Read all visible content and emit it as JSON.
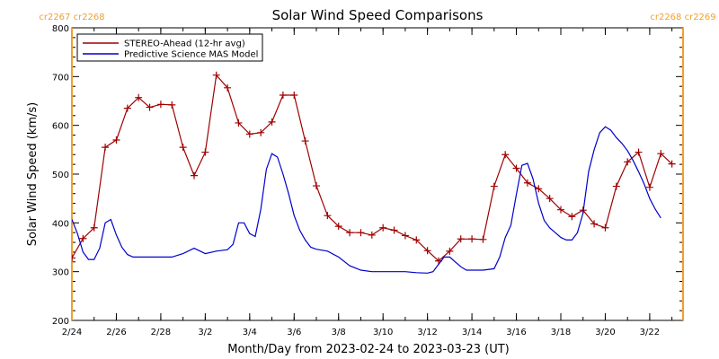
{
  "chart_data": {
    "type": "line",
    "title": "Solar Wind Speed Comparisons",
    "xlabel": "Month/Day from 2023-02-24 to 2023-03-23 (UT)",
    "ylabel": "Solar Wind Speed (km/s)",
    "x_range": [
      "2023-02-24T00:00",
      "2023-03-23T12:00"
    ],
    "ylim": [
      200,
      800
    ],
    "y_ticks": [
      200,
      300,
      400,
      500,
      600,
      700,
      800
    ],
    "x_ticks": [
      {
        "date": "2023-02-24",
        "label": "2/24"
      },
      {
        "date": "2023-02-26",
        "label": "2/26"
      },
      {
        "date": "2023-02-28",
        "label": "2/28"
      },
      {
        "date": "2023-03-02",
        "label": "3/2"
      },
      {
        "date": "2023-03-04",
        "label": "3/4"
      },
      {
        "date": "2023-03-06",
        "label": "3/6"
      },
      {
        "date": "2023-03-08",
        "label": "3/8"
      },
      {
        "date": "2023-03-10",
        "label": "3/10"
      },
      {
        "date": "2023-03-12",
        "label": "3/12"
      },
      {
        "date": "2023-03-14",
        "label": "3/14"
      },
      {
        "date": "2023-03-16",
        "label": "3/16"
      },
      {
        "date": "2023-03-18",
        "label": "3/18"
      },
      {
        "date": "2023-03-20",
        "label": "3/20"
      },
      {
        "date": "2023-03-22",
        "label": "3/22"
      }
    ],
    "carrington_rotations": [
      {
        "date": "2023-02-24T00:00",
        "labels": [
          "cr2267",
          "cr2268"
        ],
        "side": "left"
      },
      {
        "date": "2023-03-23T12:00",
        "labels": [
          "cr2268",
          "cr2269"
        ],
        "side": "right"
      }
    ],
    "legend_position": "top-left",
    "series": [
      {
        "name": "STEREO-Ahead (12-hr avg)",
        "color": "#a00000",
        "marker": "plus",
        "points": [
          [
            "2023-02-24T00:00",
            328
          ],
          [
            "2023-02-24T12:00",
            368
          ],
          [
            "2023-02-25T00:00",
            390
          ],
          [
            "2023-02-25T12:00",
            555
          ],
          [
            "2023-02-26T00:00",
            570
          ],
          [
            "2023-02-26T12:00",
            635
          ],
          [
            "2023-02-27T00:00",
            657
          ],
          [
            "2023-02-27T12:00",
            637
          ],
          [
            "2023-02-28T00:00",
            643
          ],
          [
            "2023-02-28T12:00",
            642
          ],
          [
            "2023-03-01T00:00",
            555
          ],
          [
            "2023-03-01T12:00",
            497
          ],
          [
            "2023-03-02T00:00",
            545
          ],
          [
            "2023-03-02T12:00",
            703
          ],
          [
            "2023-03-03T00:00",
            677
          ],
          [
            "2023-03-03T12:00",
            605
          ],
          [
            "2023-03-04T00:00",
            582
          ],
          [
            "2023-03-04T12:00",
            585
          ],
          [
            "2023-03-05T00:00",
            607
          ],
          [
            "2023-03-05T12:00",
            662
          ],
          [
            "2023-03-06T00:00",
            662
          ],
          [
            "2023-03-06T12:00",
            568
          ],
          [
            "2023-03-07T00:00",
            476
          ],
          [
            "2023-03-07T12:00",
            415
          ],
          [
            "2023-03-08T00:00",
            393
          ],
          [
            "2023-03-08T12:00",
            380
          ],
          [
            "2023-03-09T00:00",
            380
          ],
          [
            "2023-03-09T12:00",
            375
          ],
          [
            "2023-03-10T00:00",
            390
          ],
          [
            "2023-03-10T12:00",
            385
          ],
          [
            "2023-03-11T00:00",
            374
          ],
          [
            "2023-03-11T12:00",
            365
          ],
          [
            "2023-03-12T00:00",
            343
          ],
          [
            "2023-03-12T12:00",
            322
          ],
          [
            "2023-03-13T00:00",
            342
          ],
          [
            "2023-03-13T12:00",
            367
          ],
          [
            "2023-03-14T00:00",
            367
          ],
          [
            "2023-03-14T12:00",
            366
          ],
          [
            "2023-03-15T00:00",
            475
          ],
          [
            "2023-03-15T12:00",
            540
          ],
          [
            "2023-03-16T00:00",
            512
          ],
          [
            "2023-03-16T12:00",
            482
          ],
          [
            "2023-03-17T00:00",
            470
          ],
          [
            "2023-03-17T12:00",
            450
          ],
          [
            "2023-03-18T00:00",
            427
          ],
          [
            "2023-03-18T12:00",
            413
          ],
          [
            "2023-03-19T00:00",
            426
          ],
          [
            "2023-03-19T12:00",
            398
          ],
          [
            "2023-03-20T00:00",
            390
          ],
          [
            "2023-03-20T12:00",
            475
          ],
          [
            "2023-03-21T00:00",
            525
          ],
          [
            "2023-03-21T12:00",
            545
          ],
          [
            "2023-03-22T00:00",
            473
          ],
          [
            "2023-03-22T12:00",
            542
          ],
          [
            "2023-03-23T00:00",
            521
          ]
        ]
      },
      {
        "name": "Predictive Science MAS Model",
        "color": "#0000cc",
        "marker": "none",
        "points": [
          [
            "2023-02-24T00:00",
            407
          ],
          [
            "2023-02-24T06:00",
            378
          ],
          [
            "2023-02-24T12:00",
            340
          ],
          [
            "2023-02-24T18:00",
            325
          ],
          [
            "2023-02-25T00:00",
            325
          ],
          [
            "2023-02-25T06:00",
            348
          ],
          [
            "2023-02-25T12:00",
            400
          ],
          [
            "2023-02-25T18:00",
            407
          ],
          [
            "2023-02-26T00:00",
            375
          ],
          [
            "2023-02-26T06:00",
            350
          ],
          [
            "2023-02-26T12:00",
            335
          ],
          [
            "2023-02-26T18:00",
            330
          ],
          [
            "2023-02-27T00:00",
            330
          ],
          [
            "2023-02-27T12:00",
            330
          ],
          [
            "2023-02-28T00:00",
            330
          ],
          [
            "2023-02-28T12:00",
            330
          ],
          [
            "2023-03-01T00:00",
            337
          ],
          [
            "2023-03-01T12:00",
            348
          ],
          [
            "2023-03-02T00:00",
            337
          ],
          [
            "2023-03-02T12:00",
            342
          ],
          [
            "2023-03-03T00:00",
            345
          ],
          [
            "2023-03-03T06:00",
            356
          ],
          [
            "2023-03-03T12:00",
            400
          ],
          [
            "2023-03-03T18:00",
            400
          ],
          [
            "2023-03-04T00:00",
            378
          ],
          [
            "2023-03-04T06:00",
            372
          ],
          [
            "2023-03-04T12:00",
            428
          ],
          [
            "2023-03-04T18:00",
            510
          ],
          [
            "2023-03-05T00:00",
            542
          ],
          [
            "2023-03-05T06:00",
            535
          ],
          [
            "2023-03-05T12:00",
            500
          ],
          [
            "2023-03-05T18:00",
            460
          ],
          [
            "2023-03-06T00:00",
            415
          ],
          [
            "2023-03-06T06:00",
            385
          ],
          [
            "2023-03-06T12:00",
            365
          ],
          [
            "2023-03-06T18:00",
            350
          ],
          [
            "2023-03-07T00:00",
            346
          ],
          [
            "2023-03-07T12:00",
            342
          ],
          [
            "2023-03-08T00:00",
            330
          ],
          [
            "2023-03-08T12:00",
            312
          ],
          [
            "2023-03-09T00:00",
            303
          ],
          [
            "2023-03-09T12:00",
            300
          ],
          [
            "2023-03-10T00:00",
            300
          ],
          [
            "2023-03-11T00:00",
            300
          ],
          [
            "2023-03-11T12:00",
            298
          ],
          [
            "2023-03-12T00:00",
            297
          ],
          [
            "2023-03-12T06:00",
            300
          ],
          [
            "2023-03-12T12:00",
            315
          ],
          [
            "2023-03-12T18:00",
            330
          ],
          [
            "2023-03-13T00:00",
            330
          ],
          [
            "2023-03-13T06:00",
            320
          ],
          [
            "2023-03-13T12:00",
            310
          ],
          [
            "2023-03-13T18:00",
            303
          ],
          [
            "2023-03-14T00:00",
            303
          ],
          [
            "2023-03-14T12:00",
            303
          ],
          [
            "2023-03-15T00:00",
            306
          ],
          [
            "2023-03-15T06:00",
            330
          ],
          [
            "2023-03-15T12:00",
            370
          ],
          [
            "2023-03-15T18:00",
            395
          ],
          [
            "2023-03-16T00:00",
            458
          ],
          [
            "2023-03-16T06:00",
            518
          ],
          [
            "2023-03-16T12:00",
            522
          ],
          [
            "2023-03-16T18:00",
            490
          ],
          [
            "2023-03-17T00:00",
            440
          ],
          [
            "2023-03-17T06:00",
            405
          ],
          [
            "2023-03-17T12:00",
            390
          ],
          [
            "2023-03-17T18:00",
            380
          ],
          [
            "2023-03-18T00:00",
            370
          ],
          [
            "2023-03-18T06:00",
            365
          ],
          [
            "2023-03-18T12:00",
            365
          ],
          [
            "2023-03-18T18:00",
            380
          ],
          [
            "2023-03-19T00:00",
            420
          ],
          [
            "2023-03-19T06:00",
            505
          ],
          [
            "2023-03-19T12:00",
            550
          ],
          [
            "2023-03-19T18:00",
            585
          ],
          [
            "2023-03-20T00:00",
            597
          ],
          [
            "2023-03-20T06:00",
            590
          ],
          [
            "2023-03-20T12:00",
            575
          ],
          [
            "2023-03-20T18:00",
            563
          ],
          [
            "2023-03-21T00:00",
            548
          ],
          [
            "2023-03-21T06:00",
            528
          ],
          [
            "2023-03-21T12:00",
            505
          ],
          [
            "2023-03-21T18:00",
            480
          ],
          [
            "2023-03-22T00:00",
            450
          ],
          [
            "2023-03-22T06:00",
            428
          ],
          [
            "2023-03-22T12:00",
            410
          ]
        ]
      }
    ]
  },
  "colors": {
    "background": "#ffffff",
    "axis": "#000000",
    "cr_marker": "#f0a030",
    "stereo": "#a00000",
    "model": "#0000cc"
  }
}
